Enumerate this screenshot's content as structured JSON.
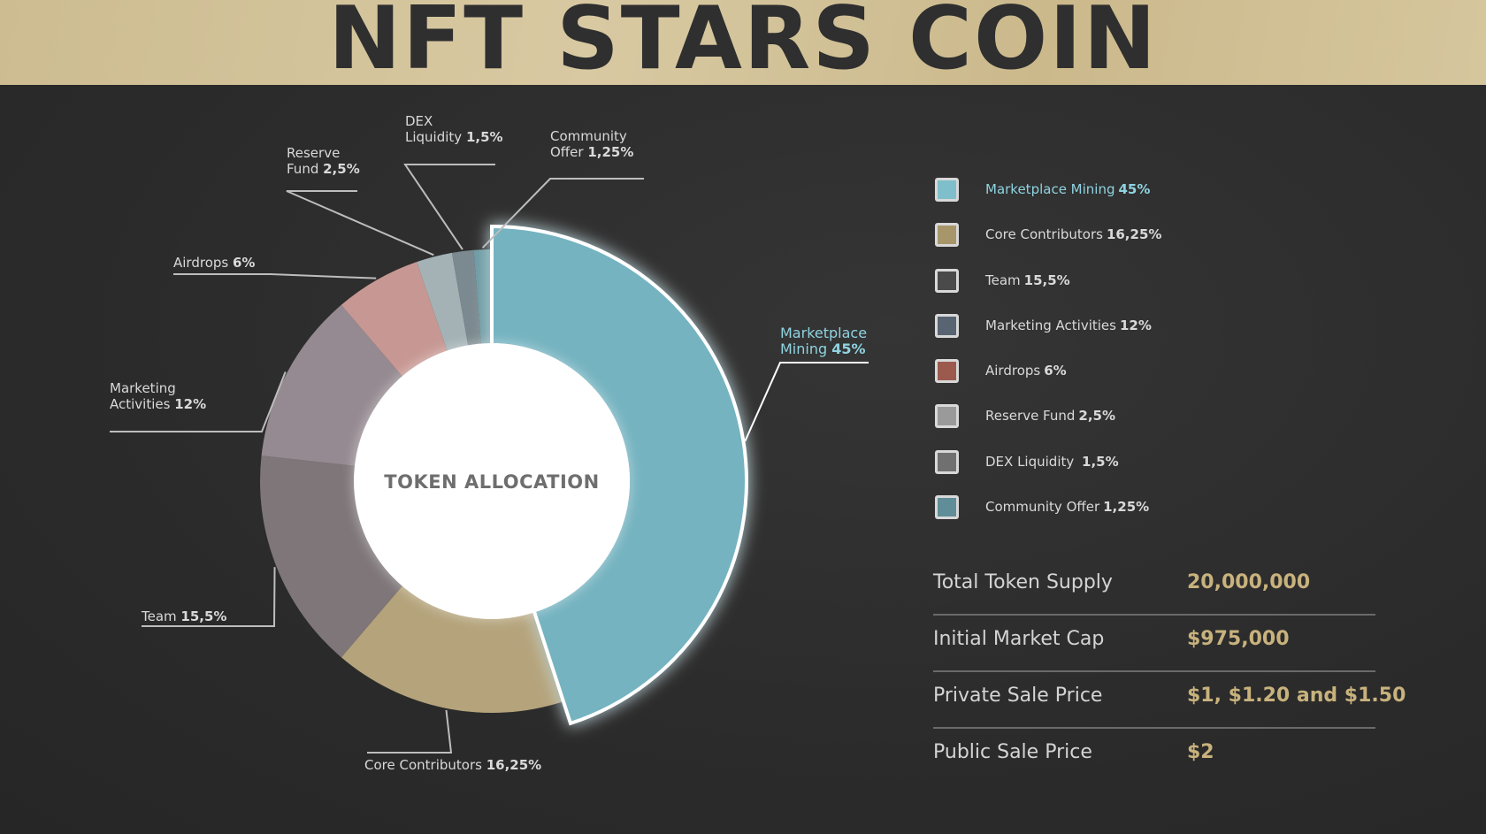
{
  "header": {
    "title": "NFT STARS COIN",
    "background_color": "#cdbc91",
    "text_color": "#2f2f2f"
  },
  "chart_data": {
    "type": "pie",
    "center_label": "TOKEN ALLOCATION",
    "slices": [
      {
        "label": "Marketplace Mining",
        "chart_label_lines": [
          "Marketplace",
          "Mining"
        ],
        "pct_text": "45%",
        "value": 45,
        "color": "#74b3c0",
        "highlight": true
      },
      {
        "label": "Core Contributors",
        "chart_label_lines": [
          "Core Contributors",
          ""
        ],
        "pct_text": "16,25%",
        "value": 16.25,
        "color": "#b4a37b"
      },
      {
        "label": "Team",
        "chart_label_lines": [
          "Team"
        ],
        "pct_text": "15,5%",
        "value": 15.5,
        "color": "#7e7678"
      },
      {
        "label": "Marketing Activities",
        "chart_label_lines": [
          "Marketing",
          "Activities"
        ],
        "pct_text": "12%",
        "value": 12,
        "color": "#958a91"
      },
      {
        "label": "Airdrops",
        "chart_label_lines": [
          "Airdrops"
        ],
        "pct_text": "6%",
        "value": 6,
        "color": "#c79893"
      },
      {
        "label": "Reserve Fund",
        "chart_label_lines": [
          "Reserve",
          "Fund"
        ],
        "pct_text": "2,5%",
        "value": 2.5,
        "color": "#a4b2b6"
      },
      {
        "label": "DEX Liquidity",
        "chart_label_lines": [
          "DEX",
          "Liquidity"
        ],
        "pct_text": "1,5%",
        "value": 1.5,
        "color": "#7b8a90"
      },
      {
        "label": "Community Offer",
        "chart_label_lines": [
          "Community",
          "Offer"
        ],
        "pct_text": "1,25%",
        "value": 1.25,
        "color": "#6d9aa3"
      }
    ]
  },
  "legend": [
    {
      "label": "Marketplace Mining",
      "pct": "45%",
      "color": "#7fbfcb",
      "highlight": true
    },
    {
      "label": "Core Contributors",
      "pct": "16,25%",
      "color": "#a8966b"
    },
    {
      "label": "Team",
      "pct": "15,5%",
      "color": "#4a4a4a"
    },
    {
      "label": "Marketing Activities",
      "pct": "12%",
      "color": "#596472"
    },
    {
      "label": "Airdrops",
      "pct": "6%",
      "color": "#9c5a4e"
    },
    {
      "label": "Reserve Fund",
      "pct": "2,5%",
      "color": "#9a9a9a"
    },
    {
      "label": "DEX Liquidity ",
      "pct": "1,5%",
      "color": "#707070"
    },
    {
      "label": "Community Offer",
      "pct": "1,25%",
      "color": "#5f8e98"
    }
  ],
  "stats": [
    {
      "label": "Total Token Supply",
      "value": "20,000,000"
    },
    {
      "label": "Initial Market Cap",
      "value": "$975,000"
    },
    {
      "label": "Private Sale Price",
      "value": "$1, $1.20 and $1.50"
    },
    {
      "label": "Public Sale Price",
      "value": "$2"
    }
  ]
}
